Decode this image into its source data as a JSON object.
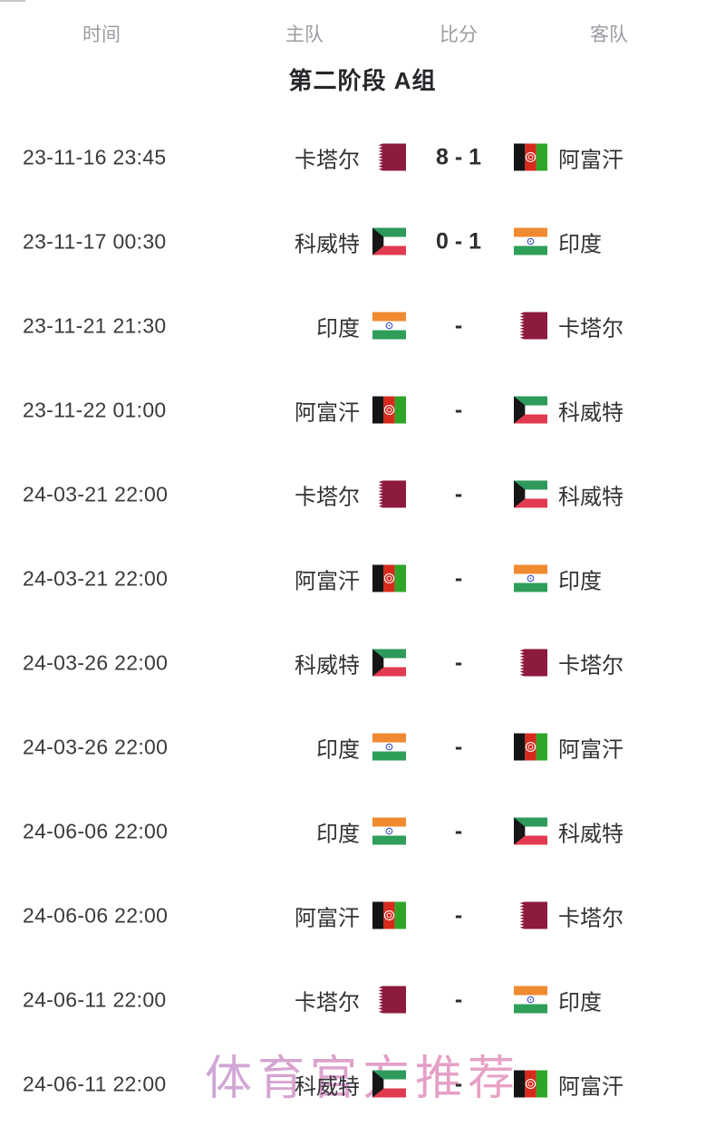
{
  "header": {
    "columns": [
      {
        "id": "time",
        "label": "时间"
      },
      {
        "id": "home",
        "label": "主队"
      },
      {
        "id": "score",
        "label": "比分"
      },
      {
        "id": "away",
        "label": "客队"
      }
    ]
  },
  "section_title": "第二阶段 A组",
  "watermark": "体育官方推荐",
  "matches": [
    {
      "time": "23-11-16 23:45",
      "home": "卡塔尔",
      "home_flag": "qatar",
      "score": "8 - 1",
      "away": "阿富汗",
      "away_flag": "afghanistan"
    },
    {
      "time": "23-11-17 00:30",
      "home": "科威特",
      "home_flag": "kuwait",
      "score": "0 - 1",
      "away": "印度",
      "away_flag": "india"
    },
    {
      "time": "23-11-21 21:30",
      "home": "印度",
      "home_flag": "india",
      "score": "-",
      "away": "卡塔尔",
      "away_flag": "qatar"
    },
    {
      "time": "23-11-22 01:00",
      "home": "阿富汗",
      "home_flag": "afghanistan",
      "score": "-",
      "away": "科威特",
      "away_flag": "kuwait"
    },
    {
      "time": "24-03-21 22:00",
      "home": "卡塔尔",
      "home_flag": "qatar",
      "score": "-",
      "away": "科威特",
      "away_flag": "kuwait"
    },
    {
      "time": "24-03-21 22:00",
      "home": "阿富汗",
      "home_flag": "afghanistan",
      "score": "-",
      "away": "印度",
      "away_flag": "india"
    },
    {
      "time": "24-03-26 22:00",
      "home": "科威特",
      "home_flag": "kuwait",
      "score": "-",
      "away": "卡塔尔",
      "away_flag": "qatar"
    },
    {
      "time": "24-03-26 22:00",
      "home": "印度",
      "home_flag": "india",
      "score": "-",
      "away": "阿富汗",
      "away_flag": "afghanistan"
    },
    {
      "time": "24-06-06 22:00",
      "home": "印度",
      "home_flag": "india",
      "score": "-",
      "away": "科威特",
      "away_flag": "kuwait"
    },
    {
      "time": "24-06-06 22:00",
      "home": "阿富汗",
      "home_flag": "afghanistan",
      "score": "-",
      "away": "卡塔尔",
      "away_flag": "qatar"
    },
    {
      "time": "24-06-11 22:00",
      "home": "卡塔尔",
      "home_flag": "qatar",
      "score": "-",
      "away": "印度",
      "away_flag": "india"
    },
    {
      "time": "24-06-11 22:00",
      "home": "科威特",
      "home_flag": "kuwait",
      "score": "-",
      "away": "阿富汗",
      "away_flag": "afghanistan"
    }
  ],
  "flag_colors": {
    "qatar": {
      "maroon": "#8d1b3d",
      "white": "#ffffff"
    },
    "kuwait": {
      "green": "#2d9a5c",
      "white": "#ffffff",
      "red": "#e23b51",
      "black": "#161616"
    },
    "india": {
      "saffron": "#f08a30",
      "white": "#ffffff",
      "green": "#2f9e58",
      "navy": "#3a52c4"
    },
    "afghanistan": {
      "black": "#141414",
      "red": "#d62a1d",
      "green": "#2fa527",
      "white": "#ffffff"
    }
  },
  "colors": {
    "background": "#ffffff",
    "header_text": "#9b9ca2",
    "body_text": "#3a3a3e",
    "team_text": "#333337",
    "score_text": "#2e2e32",
    "title_text": "#27272b",
    "watermark_violet": "#b9aee8",
    "watermark_pink": "#e3a0c8"
  }
}
